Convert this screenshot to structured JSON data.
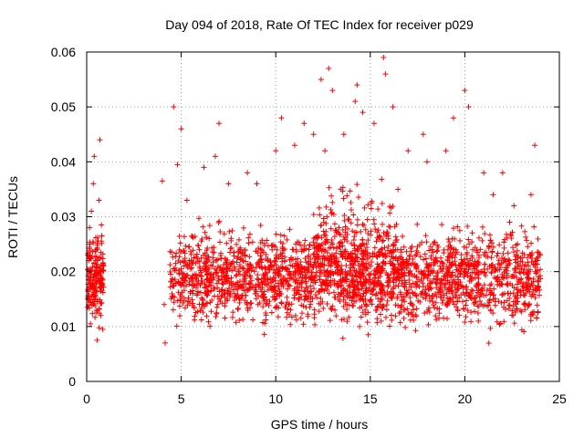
{
  "chart_data": {
    "type": "scatter",
    "title": "Day 094 of 2018, Rate Of TEC Index for receiver p029",
    "xlabel": "GPS time / hours",
    "ylabel": "ROTI / TECUs",
    "xlim": [
      0,
      25
    ],
    "ylim": [
      0,
      0.06
    ],
    "xticks": [
      0,
      5,
      10,
      15,
      20,
      25
    ],
    "xtick_labels": [
      "0",
      "5",
      "10",
      "15",
      "20",
      "25"
    ],
    "yticks": [
      0,
      0.01,
      0.02,
      0.03,
      0.04,
      0.05,
      0.06
    ],
    "ytick_labels": [
      "0",
      "0.01",
      "0.02",
      "0.03",
      "0.04",
      "0.05",
      "0.06"
    ],
    "grid": true,
    "marker": "plus",
    "color": "#ff0000",
    "series": [
      {
        "name": "ROTI",
        "points": [
          [
            0.05,
            0.0135
          ],
          [
            0.1,
            0.022
          ],
          [
            0.15,
            0.028
          ],
          [
            0.2,
            0.0105
          ],
          [
            0.25,
            0.031
          ],
          [
            0.3,
            0.0175
          ],
          [
            0.35,
            0.036
          ],
          [
            0.4,
            0.041
          ],
          [
            0.45,
            0.015
          ],
          [
            0.5,
            0.024
          ],
          [
            0.55,
            0.0075
          ],
          [
            0.6,
            0.0195
          ],
          [
            0.65,
            0.033
          ],
          [
            0.7,
            0.044
          ],
          [
            0.75,
            0.012
          ],
          [
            0.8,
            0.0265
          ],
          [
            0.85,
            0.0095
          ],
          [
            0.9,
            0.021
          ],
          [
            4.0,
            0.0365
          ],
          [
            4.1,
            0.014
          ],
          [
            4.15,
            0.007
          ],
          [
            4.6,
            0.05
          ],
          [
            4.8,
            0.0395
          ],
          [
            5.0,
            0.046
          ],
          [
            5.3,
            0.033
          ],
          [
            6.2,
            0.039
          ],
          [
            6.8,
            0.041
          ],
          [
            7.0,
            0.047
          ],
          [
            7.5,
            0.036
          ],
          [
            8.5,
            0.038
          ],
          [
            9.0,
            0.036
          ],
          [
            10.0,
            0.042
          ],
          [
            10.3,
            0.048
          ],
          [
            11.0,
            0.043
          ],
          [
            11.5,
            0.047
          ],
          [
            12.0,
            0.045
          ],
          [
            12.4,
            0.055
          ],
          [
            12.6,
            0.042
          ],
          [
            12.8,
            0.057
          ],
          [
            13.0,
            0.053
          ],
          [
            13.6,
            0.045
          ],
          [
            14.2,
            0.051
          ],
          [
            14.3,
            0.054
          ],
          [
            14.6,
            0.049
          ],
          [
            15.2,
            0.047
          ],
          [
            15.7,
            0.059
          ],
          [
            15.8,
            0.056
          ],
          [
            16.2,
            0.05
          ],
          [
            17.0,
            0.042
          ],
          [
            17.8,
            0.045
          ],
          [
            18.0,
            0.04
          ],
          [
            19.0,
            0.042
          ],
          [
            19.4,
            0.048
          ],
          [
            20.0,
            0.053
          ],
          [
            20.2,
            0.05
          ],
          [
            21.0,
            0.038
          ],
          [
            21.5,
            0.034
          ],
          [
            22.0,
            0.038
          ],
          [
            22.6,
            0.032
          ],
          [
            23.5,
            0.034
          ],
          [
            23.7,
            0.043
          ]
        ]
      }
    ]
  }
}
